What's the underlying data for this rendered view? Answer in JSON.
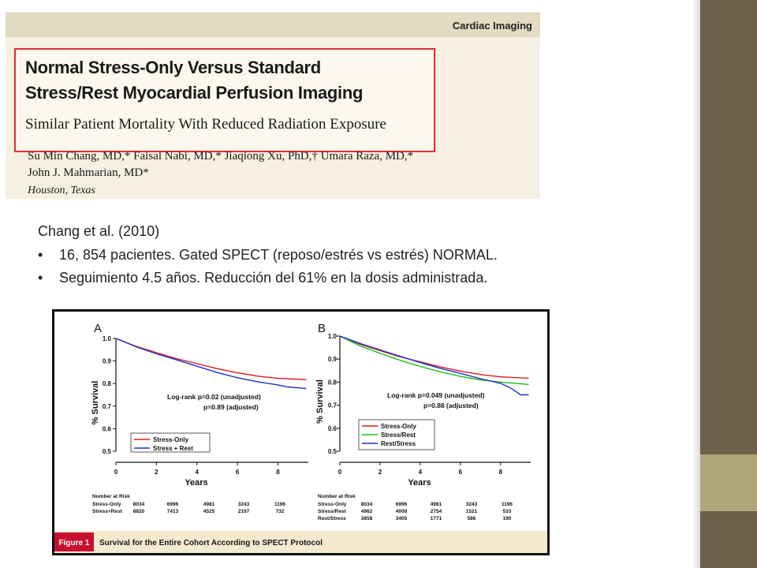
{
  "article": {
    "section": "Cardiac Imaging",
    "title_lines": [
      "Normal Stress-Only Versus Standard",
      "Stress/Rest Myocardial Perfusion Imaging"
    ],
    "subtitle": "Similar Patient Mortality With Reduced Radiation Exposure",
    "author_lines": [
      "Su Min Chang, MD,* Faisal Nabi, MD,* Jiaqiong Xu, PhD,† Umara Raza, MD,*",
      "John J. Mahmarian, MD*"
    ],
    "location": "Houston, Texas"
  },
  "slide": {
    "citation": "Chang et al. (2010)",
    "bullets": [
      "16, 854 pacientes. Gated SPECT (reposo/estrés  vs  estrés) NORMAL.",
      "Seguimiento 4.5 años.    Reducción del 61% en la dosis administrada."
    ]
  },
  "figure": {
    "label": "Figure 1",
    "caption": "Survival for the Entire Cohort According to SPECT Protocol",
    "risk_header": "Number at Risk"
  },
  "chart_data": [
    {
      "type": "line",
      "panel": "A",
      "xlabel": "Years",
      "ylabel": "% Survival",
      "xlim": [
        0,
        9.5
      ],
      "ylim": [
        0.5,
        1.0
      ],
      "xticks": [
        "0",
        "2",
        "4",
        "6",
        "8"
      ],
      "yticks": [
        "1.0",
        "0.9",
        "0.8",
        "0.7",
        "0.6",
        "0.5"
      ],
      "annotation": [
        "Log-rank  p=0.02 (unadjusted)",
        "p=0.89 (adjusted)"
      ],
      "series": [
        {
          "name": "Stress-Only",
          "color": "#d42020",
          "x": [
            0,
            1,
            2,
            3,
            4,
            5,
            6,
            7,
            8,
            9.4
          ],
          "y": [
            1.0,
            0.965,
            0.937,
            0.91,
            0.888,
            0.866,
            0.848,
            0.833,
            0.823,
            0.817
          ]
        },
        {
          "name": "Stress + Rest",
          "color": "#2030c8",
          "x": [
            0,
            1,
            2,
            3,
            4,
            5,
            6,
            7,
            8,
            8.5,
            9.4
          ],
          "y": [
            1.0,
            0.963,
            0.932,
            0.905,
            0.877,
            0.849,
            0.826,
            0.808,
            0.794,
            0.785,
            0.778
          ]
        }
      ],
      "risk_table": {
        "rows": [
          {
            "label": "Stress-Only",
            "values": [
              "8034",
              "6996",
              "4981",
              "3243",
              "1196"
            ]
          },
          {
            "label": "Stress+Rest",
            "values": [
              "8820",
              "7413",
              "4525",
              "2107",
              "732"
            ]
          }
        ]
      }
    },
    {
      "type": "line",
      "panel": "B",
      "xlabel": "Years",
      "ylabel": "% Survival",
      "xlim": [
        0,
        9.5
      ],
      "ylim": [
        0.5,
        1.0
      ],
      "xticks": [
        "0",
        "2",
        "4",
        "6",
        "8"
      ],
      "yticks": [
        "1.0",
        "0.9",
        "0.8",
        "0.7",
        "0.6",
        "0.5"
      ],
      "annotation": [
        "Log-rank  p=0.049 (unadjusted)",
        "p=0.88 (adjusted)"
      ],
      "series": [
        {
          "name": "Stress-Only",
          "color": "#d42020",
          "x": [
            0,
            1,
            2,
            3,
            4,
            5,
            6,
            7,
            8,
            9.4
          ],
          "y": [
            1.0,
            0.965,
            0.937,
            0.91,
            0.888,
            0.866,
            0.848,
            0.833,
            0.823,
            0.817
          ]
        },
        {
          "name": "Stress/Rest",
          "color": "#18c018",
          "x": [
            0,
            1,
            2,
            3,
            4,
            5,
            6,
            7,
            8,
            9.4
          ],
          "y": [
            1.0,
            0.958,
            0.925,
            0.895,
            0.868,
            0.845,
            0.825,
            0.81,
            0.8,
            0.79
          ]
        },
        {
          "name": "Rest/Stress",
          "color": "#2030c8",
          "x": [
            0,
            1,
            2,
            3,
            4,
            5,
            6,
            7,
            8,
            8.5,
            9.0,
            9.4
          ],
          "y": [
            1.0,
            0.968,
            0.94,
            0.912,
            0.885,
            0.86,
            0.838,
            0.815,
            0.795,
            0.775,
            0.745,
            0.745
          ]
        }
      ],
      "risk_table": {
        "rows": [
          {
            "label": "Stress-Only",
            "values": [
              "8034",
              "6996",
              "4981",
              "3243",
              "1196"
            ]
          },
          {
            "label": "Stress/Rest",
            "values": [
              "4962",
              "4008",
              "2754",
              "1521",
              "533"
            ]
          },
          {
            "label": "Rest/Stress",
            "values": [
              "3858",
              "3405",
              "1771",
              "586",
              "190"
            ]
          }
        ]
      }
    }
  ]
}
